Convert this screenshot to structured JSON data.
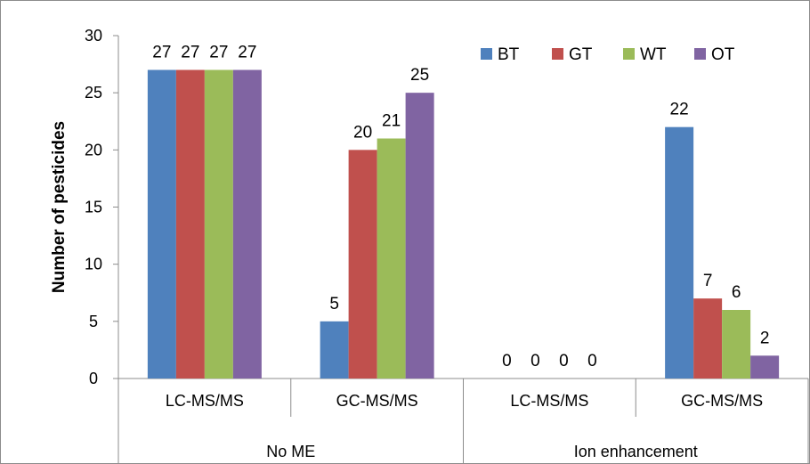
{
  "chart_data": {
    "type": "bar",
    "categories": [
      "LC-MS/MS",
      "GC-MS/MS",
      "LC-MS/MS",
      "GC-MS/MS"
    ],
    "groups": [
      {
        "label": "No ME",
        "categories": [
          "LC-MS/MS",
          "GC-MS/MS"
        ]
      },
      {
        "label": "Ion enhancement",
        "categories": [
          "LC-MS/MS",
          "GC-MS/MS"
        ]
      }
    ],
    "series": [
      {
        "name": "BT",
        "color": "#4F81BD",
        "values": [
          27,
          5,
          0,
          22
        ]
      },
      {
        "name": "GT",
        "color": "#C0504D",
        "values": [
          27,
          20,
          0,
          7
        ]
      },
      {
        "name": "WT",
        "color": "#9BBB59",
        "values": [
          27,
          21,
          0,
          6
        ]
      },
      {
        "name": "OT",
        "color": "#8064A2",
        "values": [
          27,
          25,
          0,
          2
        ]
      }
    ],
    "ylabel": "Number of pesticides",
    "ylim": [
      0,
      30
    ],
    "yticks": [
      0,
      5,
      10,
      15,
      20,
      25,
      30
    ],
    "grid": false,
    "legend_position": "top-right",
    "data_labels": true
  }
}
